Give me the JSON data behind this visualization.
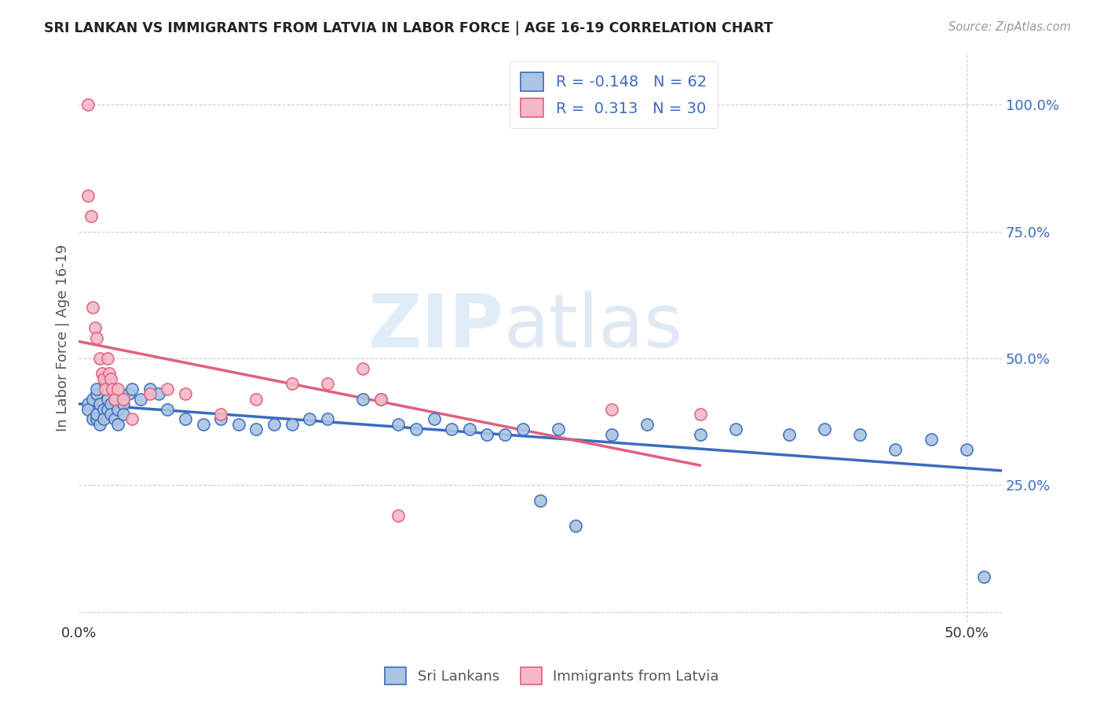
{
  "title": "SRI LANKAN VS IMMIGRANTS FROM LATVIA IN LABOR FORCE | AGE 16-19 CORRELATION CHART",
  "source": "Source: ZipAtlas.com",
  "ylabel": "In Labor Force | Age 16-19",
  "r_sri": -0.148,
  "n_sri": 62,
  "r_latvia": 0.313,
  "n_latvia": 30,
  "sri_color": "#aac4e2",
  "latvia_color": "#f4b8c8",
  "sri_line_color": "#3b6bbf",
  "latvia_line_color": "#e0607a",
  "legend_sri_label": "Sri Lankans",
  "legend_latvia_label": "Immigrants from Latvia",
  "watermark_zip": "ZIP",
  "watermark_atlas": "atlas",
  "xlim": [
    0.0,
    0.52
  ],
  "ylim": [
    -0.02,
    1.1
  ],
  "yticks": [
    0.0,
    0.25,
    0.5,
    0.75,
    1.0
  ],
  "ytick_labels": [
    "",
    "25.0%",
    "50.0%",
    "75.0%",
    "100.0%"
  ],
  "xticks": [
    0.0,
    0.5
  ],
  "xtick_labels": [
    "0.0%",
    "50.0%"
  ],
  "sri_x": [
    0.005,
    0.005,
    0.008,
    0.008,
    0.01,
    0.01,
    0.01,
    0.01,
    0.012,
    0.012,
    0.014,
    0.014,
    0.015,
    0.016,
    0.016,
    0.018,
    0.018,
    0.02,
    0.02,
    0.022,
    0.022,
    0.025,
    0.025,
    0.028,
    0.03,
    0.035,
    0.04,
    0.045,
    0.05,
    0.06,
    0.07,
    0.08,
    0.09,
    0.1,
    0.11,
    0.12,
    0.13,
    0.14,
    0.16,
    0.17,
    0.18,
    0.19,
    0.2,
    0.21,
    0.22,
    0.23,
    0.24,
    0.25,
    0.26,
    0.27,
    0.28,
    0.3,
    0.32,
    0.35,
    0.37,
    0.4,
    0.42,
    0.44,
    0.46,
    0.48,
    0.5,
    0.51
  ],
  "sri_y": [
    0.41,
    0.4,
    0.42,
    0.38,
    0.43,
    0.44,
    0.38,
    0.39,
    0.41,
    0.37,
    0.4,
    0.38,
    0.45,
    0.42,
    0.4,
    0.41,
    0.39,
    0.38,
    0.42,
    0.37,
    0.4,
    0.41,
    0.39,
    0.43,
    0.44,
    0.42,
    0.44,
    0.43,
    0.4,
    0.38,
    0.37,
    0.38,
    0.37,
    0.36,
    0.37,
    0.37,
    0.38,
    0.38,
    0.42,
    0.42,
    0.37,
    0.36,
    0.38,
    0.36,
    0.36,
    0.35,
    0.35,
    0.36,
    0.22,
    0.36,
    0.17,
    0.35,
    0.37,
    0.35,
    0.36,
    0.35,
    0.36,
    0.35,
    0.32,
    0.34,
    0.32,
    0.07
  ],
  "latvia_x": [
    0.005,
    0.005,
    0.007,
    0.008,
    0.009,
    0.01,
    0.012,
    0.013,
    0.014,
    0.015,
    0.016,
    0.017,
    0.018,
    0.019,
    0.02,
    0.022,
    0.025,
    0.03,
    0.04,
    0.05,
    0.06,
    0.08,
    0.1,
    0.12,
    0.14,
    0.16,
    0.17,
    0.18,
    0.3,
    0.35
  ],
  "latvia_y": [
    1.0,
    0.82,
    0.78,
    0.6,
    0.56,
    0.54,
    0.5,
    0.47,
    0.46,
    0.44,
    0.5,
    0.47,
    0.46,
    0.44,
    0.42,
    0.44,
    0.42,
    0.38,
    0.43,
    0.44,
    0.43,
    0.39,
    0.42,
    0.45,
    0.45,
    0.48,
    0.42,
    0.19,
    0.4,
    0.39
  ],
  "sri_trend_x0": 0.0,
  "sri_trend_x1": 0.52,
  "latvia_trend_x0": 0.0,
  "latvia_trend_x1": 0.35
}
